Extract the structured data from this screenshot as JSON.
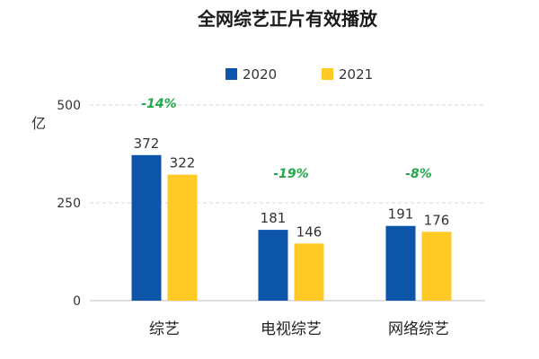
{
  "colors": {
    "s2020": "#0d55a8",
    "s2021": "#ffc926",
    "change": "#22a84a"
  },
  "chart_data": {
    "type": "bar",
    "title": "全网综艺正片有效播放",
    "ylabel": "亿",
    "ylim": [
      0,
      500
    ],
    "yticks": [
      "0",
      "250",
      "500"
    ],
    "categories": [
      "综艺",
      "电视综艺",
      "网络综艺"
    ],
    "series": [
      {
        "name": "2020",
        "values": [
          372,
          181,
          191
        ]
      },
      {
        "name": "2021",
        "values": [
          322,
          146,
          176
        ]
      }
    ],
    "annotations": [
      "-14%",
      "-19%",
      "-8%"
    ],
    "legend": "top-center",
    "grid": true
  }
}
